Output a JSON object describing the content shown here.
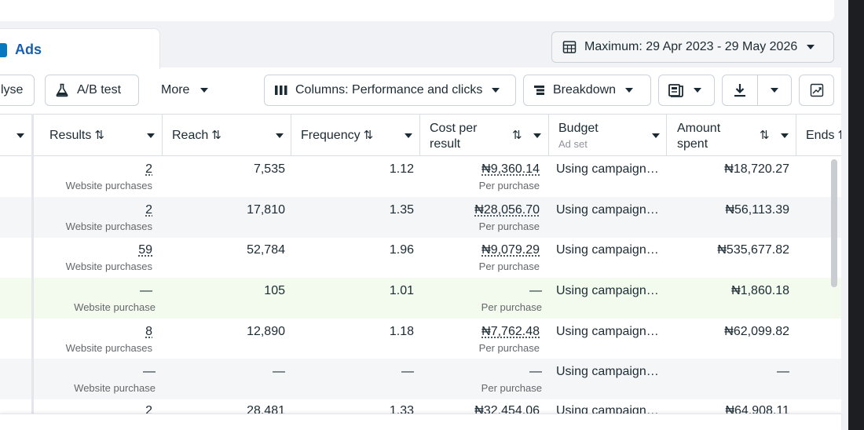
{
  "tab": {
    "label": "Ads"
  },
  "date_range": {
    "label": "Maximum: 29 Apr 2023 - 29 May 2026"
  },
  "toolbar": {
    "analyse_label": "lyse",
    "ab_test_label": "A/B test",
    "more_label": "More",
    "columns_label": "Columns: Performance and clicks",
    "breakdown_label": "Breakdown"
  },
  "table": {
    "headers": {
      "results": "Results",
      "reach": "Reach",
      "frequency": "Frequency",
      "cost_per_result_1": "Cost per",
      "cost_per_result_2": "result",
      "budget": "Budget",
      "budget_sub": "Ad set",
      "amount_spent_1": "Amount",
      "amount_spent_2": "spent",
      "ends": "Ends"
    },
    "sort_glyph": "⇅",
    "rows": [
      {
        "results": "2",
        "results_sub": "Website purchases",
        "reach": "7,535",
        "frequency": "1.12",
        "cost": "₦9,360.14",
        "cost_sub": "Per purchase",
        "budget": "Using campaign…",
        "spent": "₦18,720.27"
      },
      {
        "results": "2",
        "results_sub": "Website purchases",
        "reach": "17,810",
        "frequency": "1.35",
        "cost": "₦28,056.70",
        "cost_sub": "Per purchase",
        "budget": "Using campaign…",
        "spent": "₦56,113.39"
      },
      {
        "results": "59",
        "results_sub": "Website purchases",
        "reach": "52,784",
        "frequency": "1.96",
        "cost": "₦9,079.29",
        "cost_sub": "Per purchase",
        "budget": "Using campaign…",
        "spent": "₦535,677.82"
      },
      {
        "results": "—",
        "results_sub": "Website purchase",
        "reach": "105",
        "frequency": "1.01",
        "cost": "—",
        "cost_sub": "Per purchase",
        "budget": "Using campaign…",
        "spent": "₦1,860.18"
      },
      {
        "results": "8",
        "results_sub": "Website purchases",
        "reach": "12,890",
        "frequency": "1.18",
        "cost": "₦7,762.48",
        "cost_sub": "Per purchase",
        "budget": "Using campaign…",
        "spent": "₦62,099.82"
      },
      {
        "results": "—",
        "results_sub": "Website purchase",
        "reach": "—",
        "frequency": "—",
        "cost": "—",
        "cost_sub": "Per purchase",
        "budget": "Using campaign…",
        "spent": "—"
      },
      {
        "results": "2",
        "results_sub": "",
        "reach": "28,481",
        "frequency": "1.33",
        "cost": "₦32,454.06",
        "cost_sub": "",
        "budget": "Using campaign…",
        "spent": "₦64,908.11"
      }
    ]
  },
  "icons": {
    "calendar": "calendar-icon",
    "flask": "flask-icon",
    "columns": "columns-icon",
    "breakdown": "breakdown-icon",
    "reports": "reports-icon",
    "download": "download-icon",
    "chart": "chart-icon"
  }
}
